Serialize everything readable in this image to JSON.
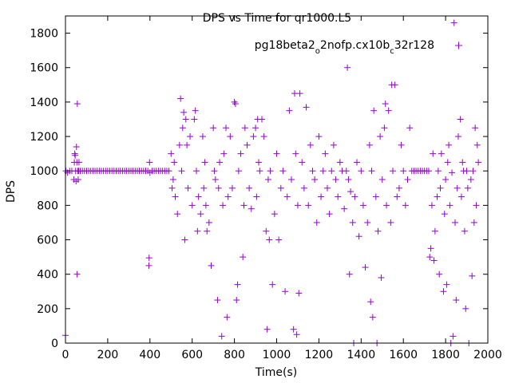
{
  "chart_data": {
    "type": "scatter",
    "title": "DPS vs Time for qr1000.L5",
    "xlabel": "Time(s)",
    "ylabel": "DPS",
    "xlim": [
      0,
      2000
    ],
    "ylim": [
      0,
      1900
    ],
    "xticks": [
      0,
      200,
      400,
      600,
      800,
      1000,
      1200,
      1400,
      1600,
      1800,
      2000
    ],
    "yticks": [
      0,
      200,
      400,
      600,
      800,
      1000,
      1200,
      1400,
      1600,
      1800
    ],
    "grid": false,
    "legend_position": "top-right",
    "marker": "+",
    "series": [
      {
        "name": "pg18beta2_o2nofp.cx10b_c32r128",
        "name_parts": [
          {
            "text": "pg18beta2",
            "sub": false
          },
          {
            "text": "o",
            "sub": true
          },
          {
            "text": "2nofp.cx10b",
            "sub": false
          },
          {
            "text": "c",
            "sub": true
          },
          {
            "text": "32r128",
            "sub": false
          }
        ],
        "color": "#9400d3",
        "points": [
          [
            0,
            45
          ],
          [
            2,
            1000
          ],
          [
            10,
            990
          ],
          [
            20,
            1000
          ],
          [
            30,
            1000
          ],
          [
            40,
            950
          ],
          [
            42,
            1050
          ],
          [
            44,
            1100
          ],
          [
            46,
            1090
          ],
          [
            48,
            1000
          ],
          [
            50,
            940
          ],
          [
            52,
            1140
          ],
          [
            54,
            1050
          ],
          [
            55,
            400
          ],
          [
            56,
            1390
          ],
          [
            58,
            1000
          ],
          [
            60,
            950
          ],
          [
            62,
            1000
          ],
          [
            64,
            1050
          ],
          [
            70,
            1000
          ],
          [
            80,
            1000
          ],
          [
            90,
            1000
          ],
          [
            100,
            1000
          ],
          [
            110,
            1000
          ],
          [
            120,
            1000
          ],
          [
            130,
            1000
          ],
          [
            140,
            1000
          ],
          [
            150,
            1000
          ],
          [
            160,
            1000
          ],
          [
            170,
            1000
          ],
          [
            180,
            1000
          ],
          [
            190,
            1000
          ],
          [
            200,
            1000
          ],
          [
            210,
            1000
          ],
          [
            220,
            1000
          ],
          [
            230,
            1000
          ],
          [
            240,
            1000
          ],
          [
            250,
            1000
          ],
          [
            260,
            1000
          ],
          [
            270,
            1000
          ],
          [
            280,
            1000
          ],
          [
            290,
            1000
          ],
          [
            300,
            1000
          ],
          [
            310,
            1000
          ],
          [
            320,
            1000
          ],
          [
            330,
            1000
          ],
          [
            340,
            1000
          ],
          [
            350,
            1000
          ],
          [
            360,
            1000
          ],
          [
            370,
            1000
          ],
          [
            380,
            1000
          ],
          [
            390,
            1000
          ],
          [
            395,
            450
          ],
          [
            396,
            495
          ],
          [
            398,
            1050
          ],
          [
            400,
            990
          ],
          [
            410,
            1000
          ],
          [
            420,
            1000
          ],
          [
            430,
            1000
          ],
          [
            440,
            1000
          ],
          [
            450,
            1000
          ],
          [
            460,
            1000
          ],
          [
            470,
            1000
          ],
          [
            480,
            1000
          ],
          [
            490,
            1000
          ],
          [
            500,
            1100
          ],
          [
            505,
            900
          ],
          [
            510,
            950
          ],
          [
            515,
            1050
          ],
          [
            520,
            850
          ],
          [
            530,
            750
          ],
          [
            540,
            1150
          ],
          [
            545,
            1420
          ],
          [
            550,
            1000
          ],
          [
            555,
            1250
          ],
          [
            560,
            1340
          ],
          [
            565,
            600
          ],
          [
            570,
            1300
          ],
          [
            575,
            1150
          ],
          [
            580,
            900
          ],
          [
            590,
            1200
          ],
          [
            600,
            800
          ],
          [
            610,
            1300
          ],
          [
            615,
            1350
          ],
          [
            620,
            1000
          ],
          [
            625,
            650
          ],
          [
            630,
            850
          ],
          [
            640,
            750
          ],
          [
            650,
            1200
          ],
          [
            655,
            900
          ],
          [
            660,
            1050
          ],
          [
            665,
            800
          ],
          [
            670,
            650
          ],
          [
            680,
            700
          ],
          [
            690,
            450
          ],
          [
            700,
            1250
          ],
          [
            705,
            1000
          ],
          [
            710,
            950
          ],
          [
            720,
            250
          ],
          [
            725,
            900
          ],
          [
            730,
            1050
          ],
          [
            740,
            40
          ],
          [
            745,
            800
          ],
          [
            750,
            1100
          ],
          [
            760,
            1250
          ],
          [
            765,
            150
          ],
          [
            770,
            850
          ],
          [
            780,
            1200
          ],
          [
            790,
            900
          ],
          [
            800,
            1400
          ],
          [
            805,
            1390
          ],
          [
            810,
            250
          ],
          [
            815,
            340
          ],
          [
            820,
            1000
          ],
          [
            830,
            1100
          ],
          [
            840,
            500
          ],
          [
            845,
            800
          ],
          [
            850,
            1250
          ],
          [
            860,
            1150
          ],
          [
            870,
            900
          ],
          [
            880,
            780
          ],
          [
            890,
            1200
          ],
          [
            900,
            1250
          ],
          [
            905,
            850
          ],
          [
            910,
            1300
          ],
          [
            915,
            1050
          ],
          [
            920,
            1000
          ],
          [
            930,
            1300
          ],
          [
            940,
            1200
          ],
          [
            950,
            650
          ],
          [
            955,
            80
          ],
          [
            960,
            950
          ],
          [
            965,
            600
          ],
          [
            970,
            1000
          ],
          [
            980,
            340
          ],
          [
            990,
            750
          ],
          [
            1000,
            1100
          ],
          [
            1010,
            600
          ],
          [
            1020,
            900
          ],
          [
            1030,
            1000
          ],
          [
            1040,
            300
          ],
          [
            1050,
            850
          ],
          [
            1060,
            1350
          ],
          [
            1070,
            950
          ],
          [
            1080,
            80
          ],
          [
            1085,
            1450
          ],
          [
            1090,
            1100
          ],
          [
            1095,
            50
          ],
          [
            1100,
            800
          ],
          [
            1105,
            290
          ],
          [
            1110,
            1450
          ],
          [
            1120,
            1050
          ],
          [
            1130,
            900
          ],
          [
            1140,
            1370
          ],
          [
            1150,
            800
          ],
          [
            1160,
            1150
          ],
          [
            1170,
            1000
          ],
          [
            1180,
            950
          ],
          [
            1190,
            700
          ],
          [
            1200,
            1200
          ],
          [
            1210,
            850
          ],
          [
            1220,
            1000
          ],
          [
            1230,
            1100
          ],
          [
            1240,
            900
          ],
          [
            1250,
            750
          ],
          [
            1260,
            1000
          ],
          [
            1270,
            1150
          ],
          [
            1280,
            950
          ],
          [
            1290,
            850
          ],
          [
            1300,
            1050
          ],
          [
            1310,
            1000
          ],
          [
            1320,
            780
          ],
          [
            1330,
            1000
          ],
          [
            1335,
            1600
          ],
          [
            1340,
            950
          ],
          [
            1345,
            400
          ],
          [
            1350,
            880
          ],
          [
            1360,
            700
          ],
          [
            1365,
            0
          ],
          [
            1370,
            850
          ],
          [
            1380,
            1050
          ],
          [
            1390,
            620
          ],
          [
            1400,
            1000
          ],
          [
            1410,
            800
          ],
          [
            1420,
            440
          ],
          [
            1430,
            700
          ],
          [
            1440,
            1150
          ],
          [
            1445,
            240
          ],
          [
            1450,
            1000
          ],
          [
            1455,
            150
          ],
          [
            1460,
            1350
          ],
          [
            1470,
            850
          ],
          [
            1475,
            0
          ],
          [
            1480,
            650
          ],
          [
            1490,
            1200
          ],
          [
            1495,
            380
          ],
          [
            1500,
            950
          ],
          [
            1510,
            1250
          ],
          [
            1515,
            1390
          ],
          [
            1520,
            800
          ],
          [
            1530,
            1350
          ],
          [
            1540,
            700
          ],
          [
            1545,
            1500
          ],
          [
            1550,
            1000
          ],
          [
            1560,
            1500
          ],
          [
            1570,
            850
          ],
          [
            1580,
            900
          ],
          [
            1590,
            1150
          ],
          [
            1600,
            1000
          ],
          [
            1610,
            800
          ],
          [
            1620,
            950
          ],
          [
            1630,
            1250
          ],
          [
            1640,
            1000
          ],
          [
            1650,
            1000
          ],
          [
            1660,
            1000
          ],
          [
            1670,
            1000
          ],
          [
            1680,
            1000
          ],
          [
            1690,
            1000
          ],
          [
            1700,
            1000
          ],
          [
            1710,
            1000
          ],
          [
            1720,
            1000
          ],
          [
            1725,
            500
          ],
          [
            1730,
            550
          ],
          [
            1735,
            800
          ],
          [
            1740,
            1100
          ],
          [
            1745,
            480
          ],
          [
            1750,
            650
          ],
          [
            1760,
            850
          ],
          [
            1765,
            1000
          ],
          [
            1770,
            400
          ],
          [
            1775,
            900
          ],
          [
            1780,
            1100
          ],
          [
            1790,
            300
          ],
          [
            1795,
            750
          ],
          [
            1800,
            950
          ],
          [
            1805,
            340
          ],
          [
            1810,
            1050
          ],
          [
            1815,
            1150
          ],
          [
            1820,
            800
          ],
          [
            1825,
            0
          ],
          [
            1830,
            990
          ],
          [
            1835,
            40
          ],
          [
            1840,
            1860
          ],
          [
            1845,
            700
          ],
          [
            1850,
            250
          ],
          [
            1855,
            900
          ],
          [
            1860,
            1200
          ],
          [
            1870,
            1300
          ],
          [
            1875,
            850
          ],
          [
            1880,
            1050
          ],
          [
            1885,
            1000
          ],
          [
            1890,
            650
          ],
          [
            1895,
            200
          ],
          [
            1900,
            1000
          ],
          [
            1905,
            900
          ],
          [
            1910,
            0
          ],
          [
            1920,
            950
          ],
          [
            1925,
            390
          ],
          [
            1930,
            1000
          ],
          [
            1935,
            700
          ],
          [
            1940,
            1250
          ],
          [
            1945,
            800
          ],
          [
            1950,
            1150
          ],
          [
            1955,
            1050
          ]
        ]
      }
    ]
  }
}
